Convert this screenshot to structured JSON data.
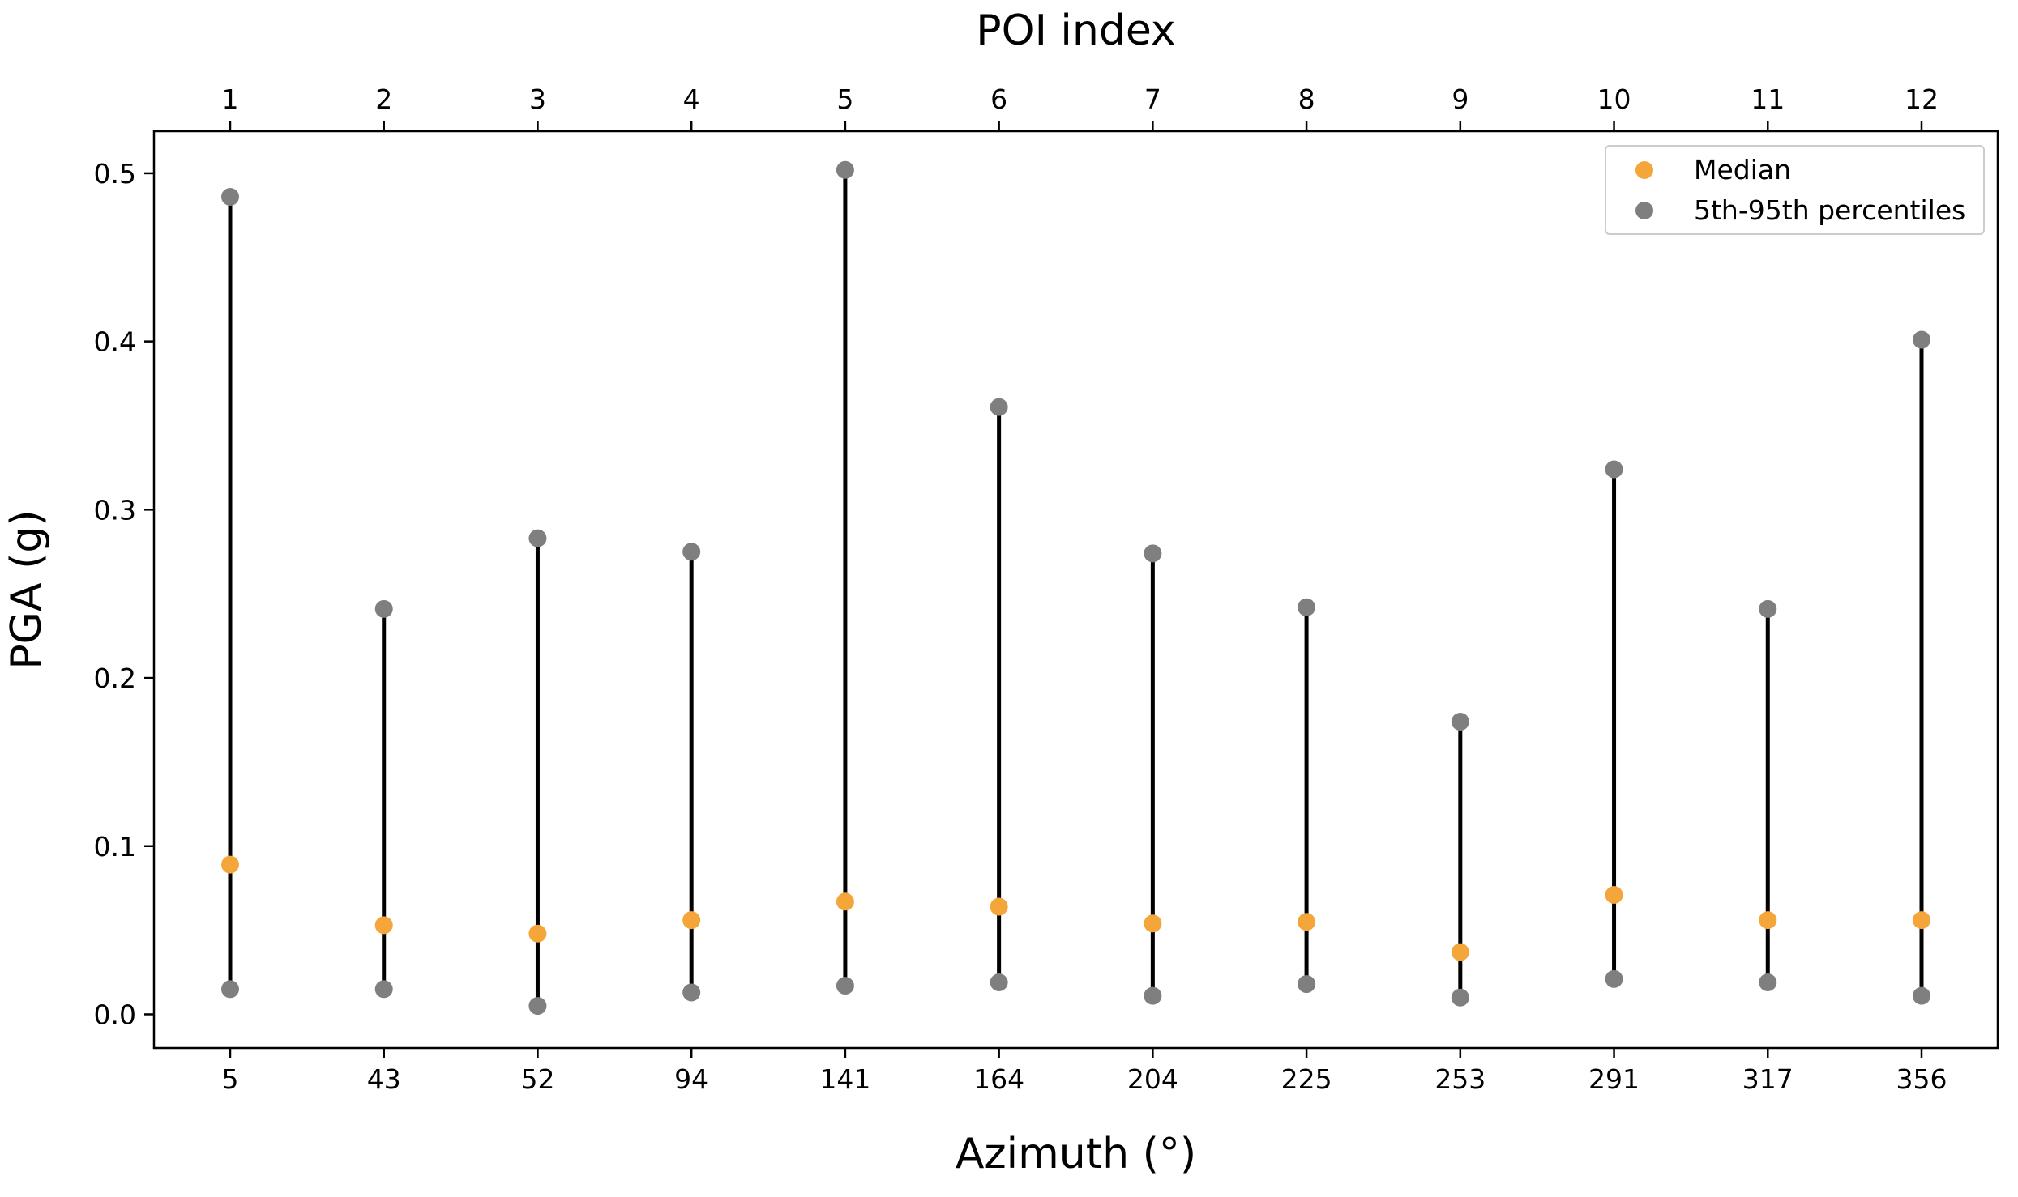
{
  "chart_data": {
    "type": "scatter",
    "title": "",
    "xlabel": "Azimuth (°)",
    "top_xlabel": "POI index",
    "ylabel": "PGA (g)",
    "ylim": [
      -0.02,
      0.525
    ],
    "yticks": [
      0.0,
      0.1,
      0.2,
      0.3,
      0.4,
      0.5
    ],
    "ytick_labels": [
      "0.0",
      "0.1",
      "0.2",
      "0.3",
      "0.4",
      "0.5"
    ],
    "grid": false,
    "legend_position": "top-right",
    "categories": [
      "5",
      "43",
      "52",
      "94",
      "141",
      "164",
      "204",
      "225",
      "253",
      "291",
      "317",
      "356"
    ],
    "top_categories": [
      "1",
      "2",
      "3",
      "4",
      "5",
      "6",
      "7",
      "8",
      "9",
      "10",
      "11",
      "12"
    ],
    "series": [
      {
        "name": "Median",
        "color": "#f4a63a",
        "values": [
          0.089,
          0.053,
          0.048,
          0.056,
          0.067,
          0.064,
          0.054,
          0.055,
          0.037,
          0.071,
          0.056,
          0.056
        ]
      },
      {
        "name": "5th-95th percentiles",
        "color": "#7f7f7f",
        "low": [
          0.015,
          0.015,
          0.005,
          0.013,
          0.017,
          0.019,
          0.011,
          0.018,
          0.01,
          0.021,
          0.019,
          0.011
        ],
        "high": [
          0.486,
          0.241,
          0.283,
          0.275,
          0.502,
          0.361,
          0.274,
          0.242,
          0.174,
          0.324,
          0.241,
          0.401
        ]
      }
    ],
    "range_line_color": "#000000"
  }
}
